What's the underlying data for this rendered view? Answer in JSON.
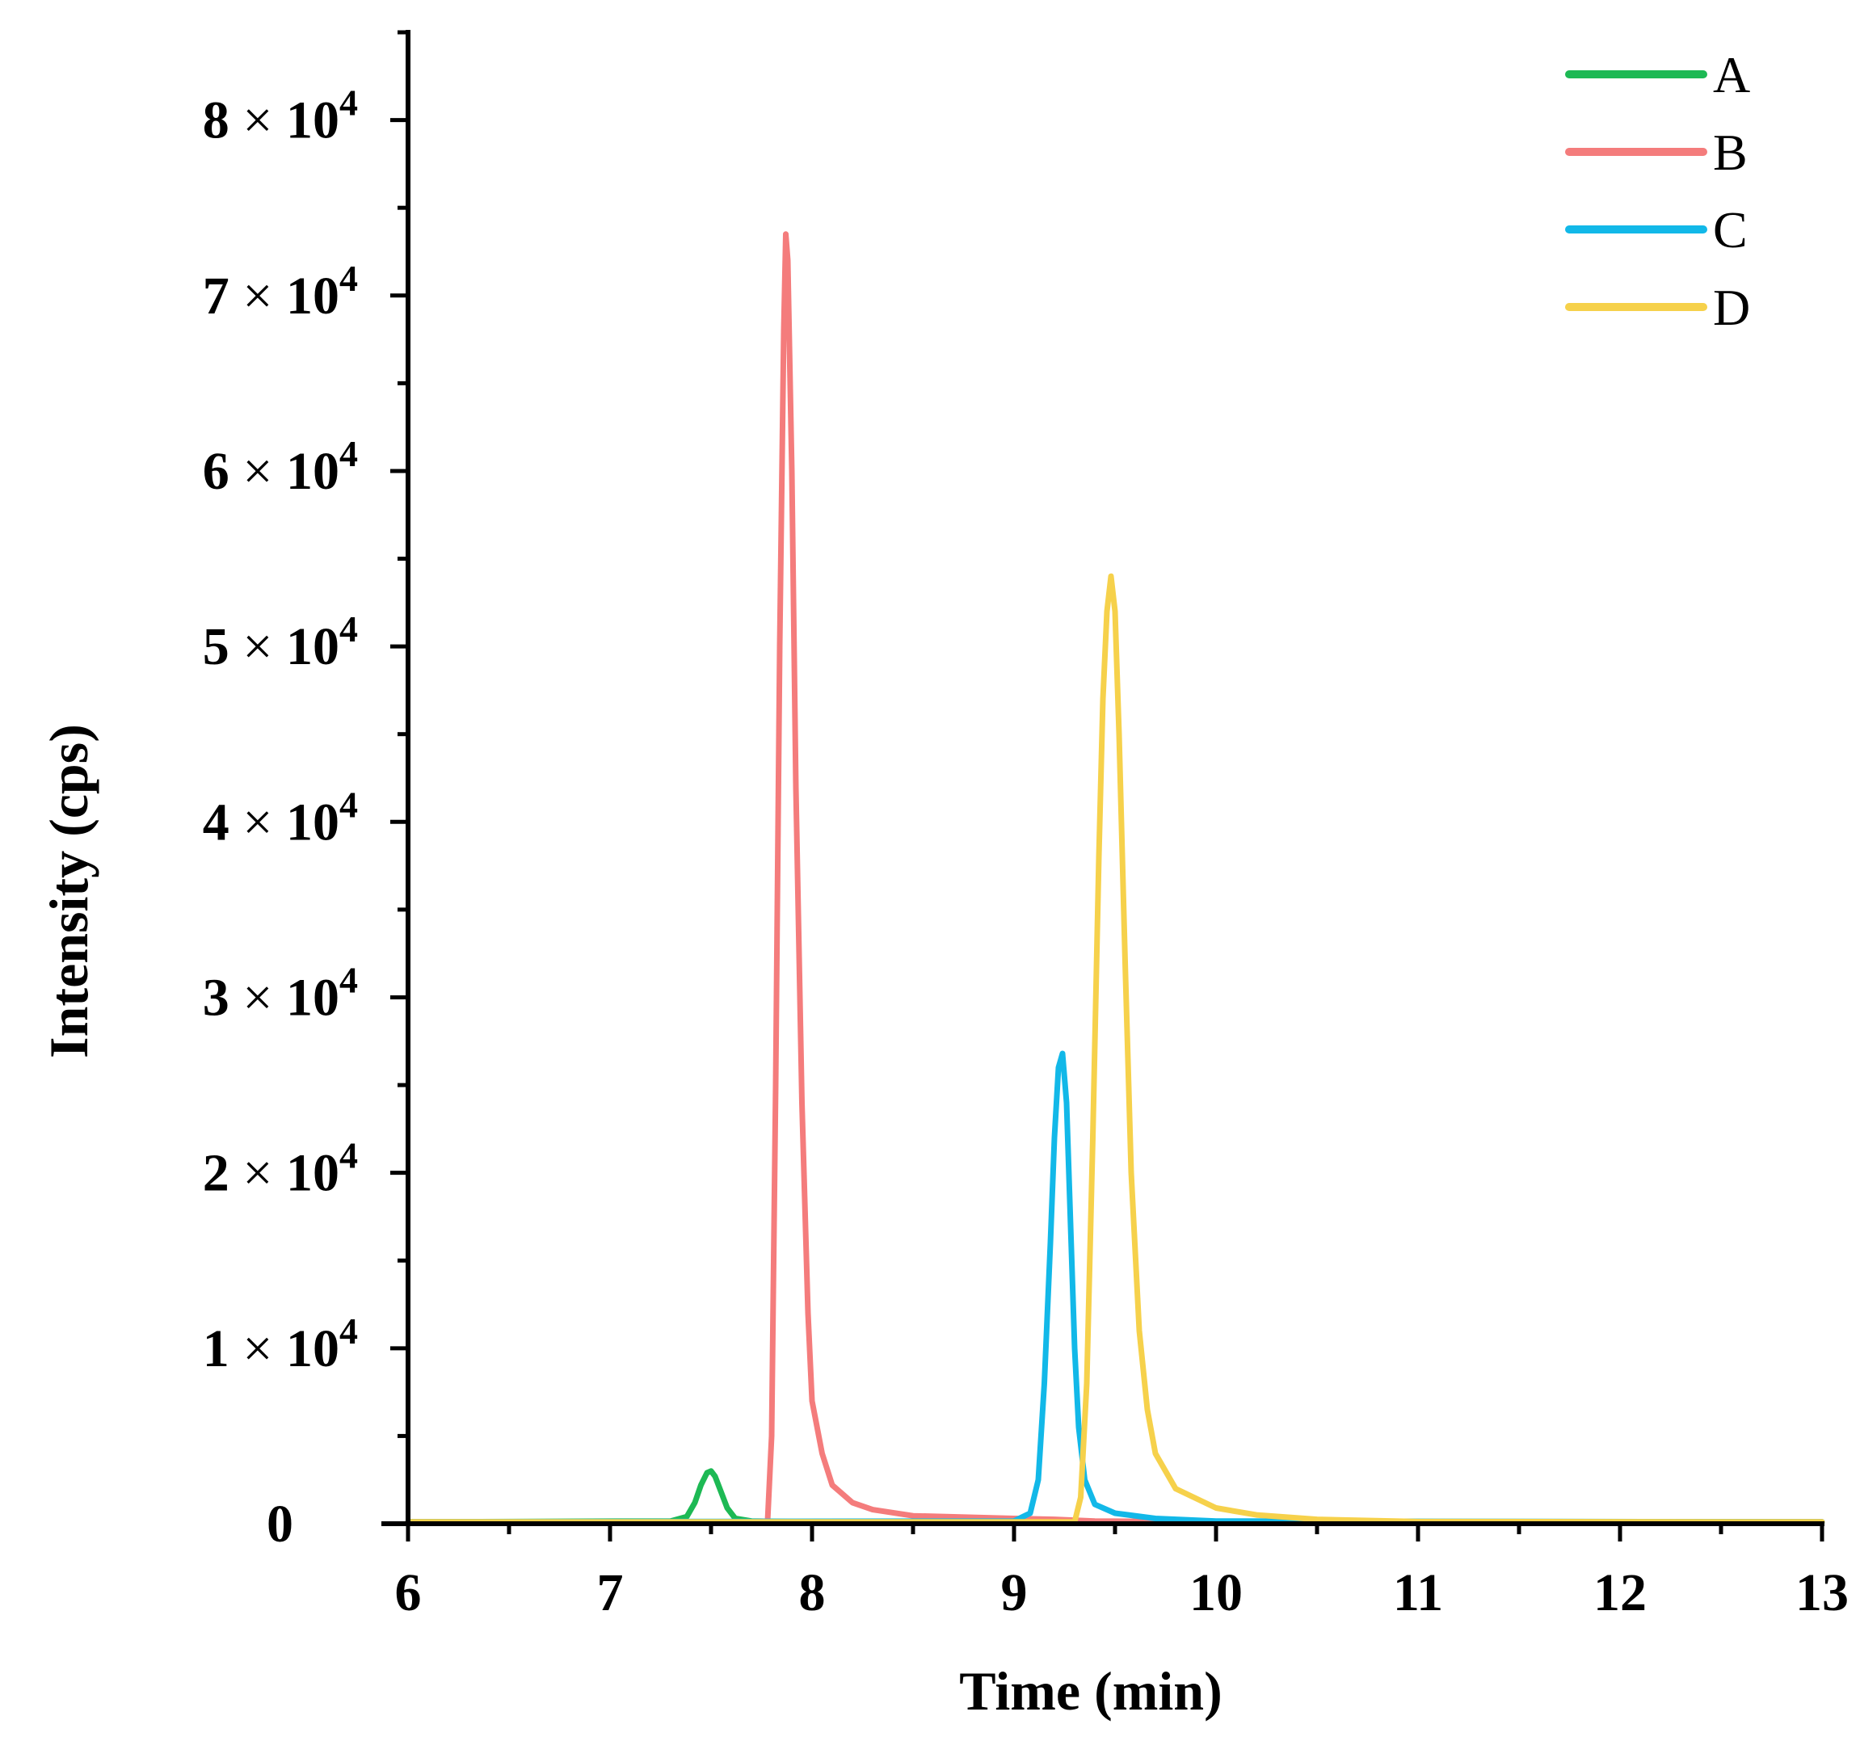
{
  "chart_data": {
    "type": "line",
    "title": "",
    "xlabel": "Time (min)",
    "ylabel": "Intensity (cps)",
    "xlim": [
      6,
      13
    ],
    "ylim": [
      0,
      85000
    ],
    "x_ticks": [
      6,
      7,
      8,
      9,
      10,
      11,
      12,
      13
    ],
    "x_tick_labels": [
      "6",
      "7",
      "8",
      "9",
      "10",
      "11",
      "12",
      "13"
    ],
    "y_ticks": [
      0,
      10000,
      20000,
      30000,
      40000,
      50000,
      60000,
      70000,
      80000
    ],
    "y_tick_labels": [
      {
        "coef": "0",
        "times": "",
        "base": "",
        "exp": ""
      },
      {
        "coef": "1",
        "times": "×",
        "base": "10",
        "exp": "4"
      },
      {
        "coef": "2",
        "times": "×",
        "base": "10",
        "exp": "4"
      },
      {
        "coef": "3",
        "times": "×",
        "base": "10",
        "exp": "4"
      },
      {
        "coef": "4",
        "times": "×",
        "base": "10",
        "exp": "4"
      },
      {
        "coef": "5",
        "times": "×",
        "base": "10",
        "exp": "4"
      },
      {
        "coef": "6",
        "times": "×",
        "base": "10",
        "exp": "4"
      },
      {
        "coef": "7",
        "times": "×",
        "base": "10",
        "exp": "4"
      },
      {
        "coef": "8",
        "times": "×",
        "base": "10",
        "exp": "4"
      }
    ],
    "legend": "top-right",
    "grid": false,
    "series": [
      {
        "name": "A",
        "color": "#1db954",
        "x": [
          6.0,
          7.3,
          7.38,
          7.42,
          7.45,
          7.48,
          7.5,
          7.52,
          7.55,
          7.58,
          7.62,
          7.7,
          8.0,
          9.0,
          13.0
        ],
        "y": [
          100,
          150,
          400,
          1200,
          2200,
          2900,
          3000,
          2700,
          1800,
          900,
          300,
          150,
          100,
          100,
          100
        ]
      },
      {
        "name": "B",
        "color": "#f47c7c",
        "x": [
          6.0,
          7.7,
          7.78,
          7.8,
          7.82,
          7.84,
          7.86,
          7.87,
          7.88,
          7.9,
          7.92,
          7.95,
          7.98,
          8.0,
          8.05,
          8.1,
          8.2,
          8.3,
          8.5,
          9.0,
          9.2,
          9.4,
          10.0,
          13.0
        ],
        "y": [
          100,
          100,
          150,
          5000,
          25000,
          50000,
          68000,
          73500,
          72000,
          60000,
          42000,
          24000,
          12000,
          7000,
          4000,
          2200,
          1200,
          800,
          450,
          300,
          250,
          150,
          100,
          100
        ]
      },
      {
        "name": "C",
        "color": "#12b8e8",
        "x": [
          6.0,
          9.0,
          9.08,
          9.12,
          9.15,
          9.18,
          9.2,
          9.22,
          9.24,
          9.26,
          9.28,
          9.3,
          9.32,
          9.35,
          9.4,
          9.5,
          9.7,
          10.0,
          13.0
        ],
        "y": [
          100,
          150,
          600,
          2500,
          8000,
          16000,
          22000,
          26000,
          26800,
          24000,
          17000,
          10000,
          5500,
          2500,
          1100,
          600,
          300,
          150,
          100
        ]
      },
      {
        "name": "D",
        "color": "#f6d14b",
        "x": [
          6.0,
          9.3,
          9.33,
          9.36,
          9.39,
          9.42,
          9.44,
          9.46,
          9.48,
          9.5,
          9.52,
          9.55,
          9.58,
          9.62,
          9.66,
          9.7,
          9.8,
          10.0,
          10.2,
          10.5,
          11.0,
          13.0
        ],
        "y": [
          100,
          100,
          1500,
          8000,
          22000,
          38000,
          47000,
          52000,
          54000,
          52000,
          45000,
          32000,
          20000,
          11000,
          6500,
          4000,
          2000,
          900,
          500,
          250,
          120,
          100
        ]
      }
    ]
  }
}
